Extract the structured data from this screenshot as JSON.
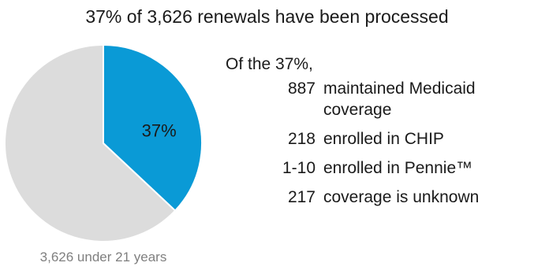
{
  "title": "37% of 3,626 renewals have been processed",
  "chart_data": {
    "type": "pie",
    "total_label": "3,626 under 21 years",
    "slices": [
      {
        "label": "37%",
        "value": 37,
        "color": "#0a9ad6",
        "show_label": true
      },
      {
        "label": "",
        "value": 63,
        "color": "#dcdcdc",
        "show_label": false
      }
    ],
    "start_angle_deg": 0,
    "direction": "clockwise"
  },
  "breakdown": {
    "intro": "Of the 37%,",
    "items": [
      {
        "value": "887",
        "label": "maintained Medicaid coverage"
      },
      {
        "value": "218",
        "label": "enrolled in CHIP"
      },
      {
        "value": "1-10",
        "label": "enrolled in Pennie™"
      },
      {
        "value": "217",
        "label": "coverage is unknown"
      }
    ]
  }
}
